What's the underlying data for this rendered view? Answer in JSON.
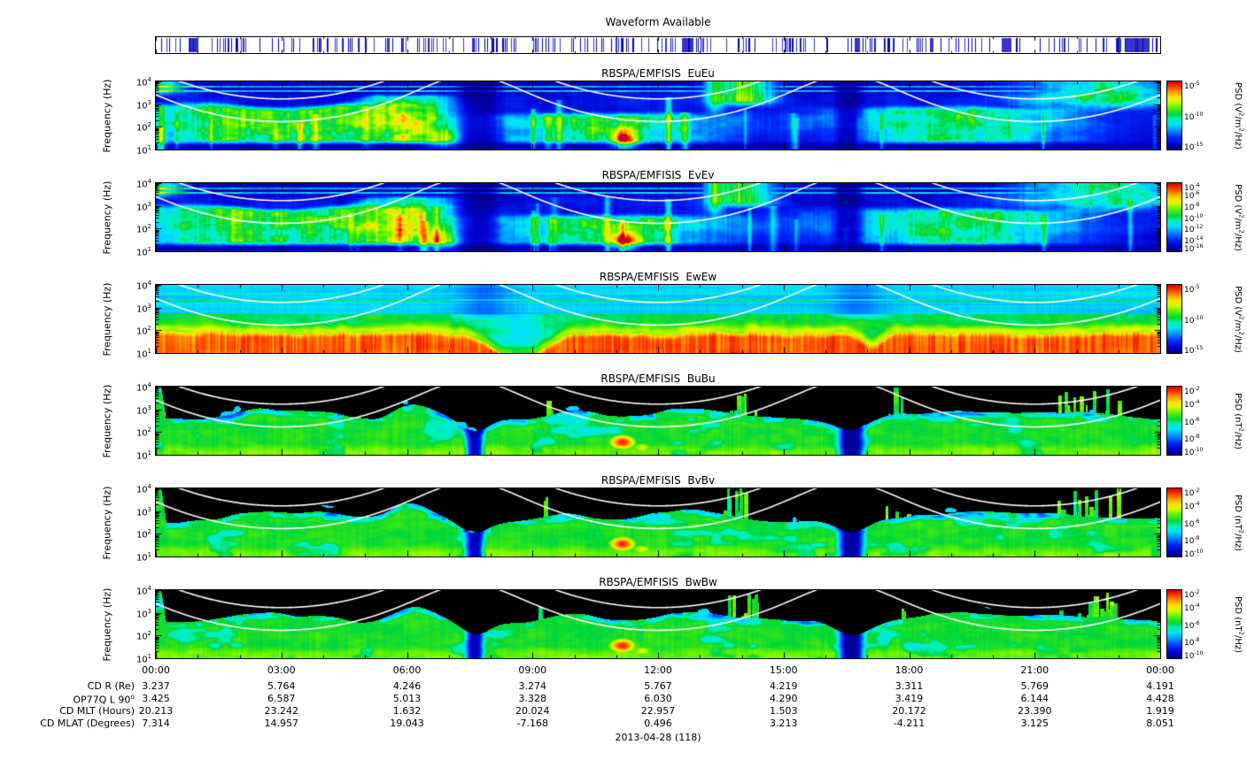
{
  "waveform": {
    "title": "Waveform Available"
  },
  "y_axis": {
    "label": "Frequency (Hz)",
    "tick_exponents": [
      4,
      3,
      2,
      1
    ]
  },
  "x_axis": {
    "tick_labels": [
      "00:00",
      "03:00",
      "06:00",
      "09:00",
      "12:00",
      "15:00",
      "18:00",
      "21:00",
      "00:00"
    ]
  },
  "panels": [
    {
      "key": "EuEu",
      "kind": "E",
      "title": "RBSPA/EMFISIS  EuEu",
      "colorbar": {
        "title": "PSD (V^2/m^2/Hz)",
        "tick_exponents": [
          -5,
          -10,
          -15
        ],
        "top_exponent": -5,
        "bottom_exponent": -15
      }
    },
    {
      "key": "EvEv",
      "kind": "E",
      "title": "RBSPA/EMFISIS  EvEv",
      "colorbar": {
        "title": "PSD (V^2/m^2/Hz)",
        "tick_exponents": [
          -4,
          -6,
          -8,
          -10,
          -12,
          -14,
          -16
        ],
        "top_exponent": -4,
        "bottom_exponent": -16
      }
    },
    {
      "key": "EwEw",
      "kind": "W",
      "title": "RBSPA/EMFISIS  EwEw",
      "colorbar": {
        "title": "PSD (V^2/m^2/Hz)",
        "tick_exponents": [
          -5,
          -10,
          -15
        ],
        "top_exponent": -5,
        "bottom_exponent": -15
      }
    },
    {
      "key": "BuBu",
      "kind": "B",
      "title": "RBSPA/EMFISIS  BuBu",
      "colorbar": {
        "title": "PSD (nT^2/Hz)",
        "tick_exponents": [
          -2,
          -4,
          -6,
          -8,
          -10
        ],
        "top_exponent": -2,
        "bottom_exponent": -10
      }
    },
    {
      "key": "BvBv",
      "kind": "B",
      "title": "RBSPA/EMFISIS  BvBv",
      "colorbar": {
        "title": "PSD (nT^2/Hz)",
        "tick_exponents": [
          -2,
          -4,
          -6,
          -8,
          -10
        ],
        "top_exponent": -2,
        "bottom_exponent": -10
      }
    },
    {
      "key": "BwBw",
      "kind": "B",
      "title": "RBSPA/EMFISIS  BwBw",
      "colorbar": {
        "title": "PSD (nT^2/Hz)",
        "tick_exponents": [
          -2,
          -4,
          -6,
          -8,
          -10
        ],
        "top_exponent": -2,
        "bottom_exponent": -10
      }
    }
  ],
  "ephemeris": {
    "rows": [
      {
        "label": "CD R (Re)",
        "values": [
          "3.237",
          "5.764",
          "4.246",
          "3.274",
          "5.767",
          "4.219",
          "3.311",
          "5.769",
          "4.191"
        ]
      },
      {
        "label": "OP77Q L 90^o",
        "values": [
          "3.425",
          "6.587",
          "5.013",
          "3.328",
          "6.030",
          "4.290",
          "3.419",
          "6.144",
          "4.428"
        ]
      },
      {
        "label": "CD MLT (Hours)",
        "values": [
          "20.213",
          "23.242",
          "1.632",
          "20.024",
          "22.957",
          "1.503",
          "20.172",
          "23.390",
          "1.919"
        ]
      },
      {
        "label": "CD MLAT (Degrees)",
        "values": [
          "7.314",
          "14.957",
          "19.043",
          "-7.168",
          "0.496",
          "3.213",
          "-4.211",
          "3.125",
          "8.051"
        ]
      }
    ]
  },
  "date_label": "2013-04-28 (118)",
  "chart_data": [
    {
      "type": "bar",
      "title": "Waveform Available",
      "description": "Availability strip spanning 00:00-24:00 UT filled with dense irregular thin vertical blue tick marks indicating times when burst waveform data exist."
    },
    {
      "type": "heatmap",
      "title": "RBSPA/EMFISIS  EuEu",
      "x_label": "UT 2013-04-28",
      "x_ticks": [
        "00:00",
        "03:00",
        "06:00",
        "09:00",
        "12:00",
        "15:00",
        "18:00",
        "21:00",
        "00:00"
      ],
      "y_label": "Frequency (Hz)",
      "y_scale": "log",
      "y_range": [
        10,
        10000
      ],
      "z_label": "PSD (V^2/m^2/Hz)",
      "z_scale": "log",
      "z_range": [
        1e-15,
        1e-05
      ],
      "overlays": "two white orbit-modulated frequency curves (fce and fce/10) peaking off-scale near 07:30 and 16:30 UT",
      "features": "dark-blue low PSD background; green broadband emission patches below ~1 kHz near 01-07, 09-13 and 17-21 UT; bright bursts above 1 kHz near 13:30-14:30 and 21-24 UT; thin cyan lines near 4-6 kHz; dark columns at perigee"
    },
    {
      "type": "heatmap",
      "title": "RBSPA/EMFISIS  EvEv",
      "x_label": "UT 2013-04-28",
      "x_ticks": [
        "00:00",
        "03:00",
        "06:00",
        "09:00",
        "12:00",
        "15:00",
        "18:00",
        "21:00",
        "00:00"
      ],
      "y_label": "Frequency (Hz)",
      "y_scale": "log",
      "y_range": [
        10,
        10000
      ],
      "z_label": "PSD (V^2/m^2/Hz)",
      "z_scale": "log",
      "z_range": [
        1e-16,
        0.0001
      ],
      "overlays": "two white orbit-modulated frequency curves (fce and fce/10)",
      "features": "very similar to EuEu: green emission patches below ~1 kHz, bursts near 14:00 and 21-24 UT, dark perigee columns"
    },
    {
      "type": "heatmap",
      "title": "RBSPA/EMFISIS  EwEw",
      "x_label": "UT 2013-04-28",
      "x_ticks": [
        "00:00",
        "03:00",
        "06:00",
        "09:00",
        "12:00",
        "15:00",
        "18:00",
        "21:00",
        "00:00"
      ],
      "y_label": "Frequency (Hz)",
      "y_scale": "log",
      "y_range": [
        10,
        10000
      ],
      "z_label": "PSD (V^2/m^2/Hz)",
      "z_scale": "log",
      "z_range": [
        1e-15,
        1e-05
      ],
      "overlays": "two white orbit-modulated frequency curves",
      "features": "intense red/orange striped band below ~70 Hz through most of the day with a cyan gap near 08:00-09:30; green mid band; banded cyan above ~500 Hz with persistent narrow lines near 1.5-3 kHz"
    },
    {
      "type": "heatmap",
      "title": "RBSPA/EMFISIS  BuBu",
      "x_label": "UT 2013-04-28",
      "x_ticks": [
        "00:00",
        "03:00",
        "06:00",
        "09:00",
        "12:00",
        "15:00",
        "18:00",
        "21:00",
        "00:00"
      ],
      "y_label": "Frequency (Hz)",
      "y_scale": "log",
      "y_range": [
        10,
        10000
      ],
      "z_label": "PSD (nT^2/Hz)",
      "z_scale": "log",
      "z_range": [
        1e-10,
        0.01
      ],
      "overlays": "two white orbit-modulated frequency curves over black region",
      "features": "green broadband below a few hundred Hz with bumps to ~3 kHz; black above; intense red burst near 11:10 at 20-100 Hz; vertical green bursts to 10 kHz near 14:00 and 21-23 UT; dark columns at perigee"
    },
    {
      "type": "heatmap",
      "title": "RBSPA/EMFISIS  BvBv",
      "x_label": "UT 2013-04-28",
      "x_ticks": [
        "00:00",
        "03:00",
        "06:00",
        "09:00",
        "12:00",
        "15:00",
        "18:00",
        "21:00",
        "00:00"
      ],
      "y_label": "Frequency (Hz)",
      "y_scale": "log",
      "y_range": [
        10,
        10000
      ],
      "z_label": "PSD (nT^2/Hz)",
      "z_scale": "log",
      "z_range": [
        1e-10,
        0.01
      ],
      "overlays": "two white orbit-modulated frequency curves over black region",
      "features": "same morphology as BuBu"
    },
    {
      "type": "heatmap",
      "title": "RBSPA/EMFISIS  BwBw",
      "x_label": "UT 2013-04-28",
      "x_ticks": [
        "00:00",
        "03:00",
        "06:00",
        "09:00",
        "12:00",
        "15:00",
        "18:00",
        "21:00",
        "00:00"
      ],
      "y_label": "Frequency (Hz)",
      "y_scale": "log",
      "y_range": [
        10,
        10000
      ],
      "z_label": "PSD (nT^2/Hz)",
      "z_scale": "log",
      "z_range": [
        1e-10,
        0.01
      ],
      "overlays": "two white orbit-modulated frequency curves over black region",
      "features": "same morphology as BuBu/BvBv"
    },
    {
      "type": "table",
      "title": "Orbit ephemeris vs UT",
      "columns": [
        "00:00",
        "03:00",
        "06:00",
        "09:00",
        "12:00",
        "15:00",
        "18:00",
        "21:00",
        "00:00"
      ],
      "rows": [
        {
          "label": "CD R (Re)",
          "values": [
            3.237,
            5.764,
            4.246,
            3.274,
            5.767,
            4.219,
            3.311,
            5.769,
            4.191
          ]
        },
        {
          "label": "OP77Q L 90deg",
          "values": [
            3.425,
            6.587,
            5.013,
            3.328,
            6.03,
            4.29,
            3.419,
            6.144,
            4.428
          ]
        },
        {
          "label": "CD MLT (Hours)",
          "values": [
            20.213,
            23.242,
            1.632,
            20.024,
            22.957,
            1.503,
            20.172,
            23.39,
            1.919
          ]
        },
        {
          "label": "CD MLAT (Degrees)",
          "values": [
            7.314,
            14.957,
            19.043,
            -7.168,
            0.496,
            3.213,
            -4.211,
            3.125,
            8.051
          ]
        }
      ]
    }
  ]
}
